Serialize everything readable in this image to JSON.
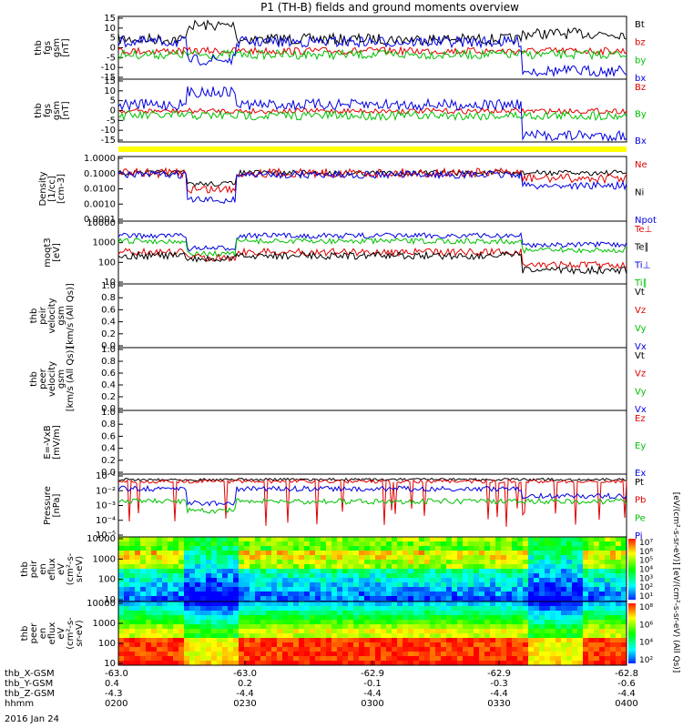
{
  "title": "P1 (TH-B) fields and ground moments overview",
  "date_label": "2016 Jan 24",
  "colors": {
    "black": "#000000",
    "red": "#e00000",
    "green": "#00c000",
    "blue": "#0000e0",
    "yellow": "#ffff00"
  },
  "chart_data": [
    {
      "type": "line",
      "ylabel_lines": [
        "thb",
        "fgs",
        "gsm",
        "[nT]"
      ],
      "ylim": [
        -18,
        16
      ],
      "yticks": [
        "15",
        "10",
        "5",
        "0",
        "-5",
        "-10",
        "-15"
      ],
      "legend": [
        {
          "name": "Bt",
          "color": "black"
        },
        {
          "name": "bz",
          "color": "red"
        },
        {
          "name": "by",
          "color": "green"
        },
        {
          "name": "bx",
          "color": "blue"
        }
      ]
    },
    {
      "type": "line",
      "ylabel_lines": [
        "thb",
        "fgs",
        "gsm",
        "[nT]"
      ],
      "ylim": [
        -18,
        16
      ],
      "yticks": [
        "15",
        "10",
        "5",
        "0",
        "-5",
        "-10",
        "-15"
      ],
      "legend": [
        {
          "name": "Bz",
          "color": "red"
        },
        {
          "name": "By",
          "color": "green"
        },
        {
          "name": "Bx",
          "color": "blue"
        }
      ]
    },
    {
      "type": "line",
      "ylabel_lines": [
        "Density",
        "[1/cc]",
        "[cm-3]"
      ],
      "scale": "log",
      "yticks": [
        "1.0000",
        "0.1000",
        "0.0100",
        "0.0010",
        "0.0001"
      ],
      "legend": [
        {
          "name": "Ne",
          "color": "red"
        },
        {
          "name": "Ni",
          "color": "black"
        },
        {
          "name": "Npot",
          "color": "blue"
        }
      ]
    },
    {
      "type": "line",
      "ylabel_lines": [
        "moqt3",
        "[eV]"
      ],
      "scale": "log",
      "yticks": [
        "10000",
        "1000",
        "100",
        "10"
      ],
      "legend": [
        {
          "name": "Te⊥",
          "color": "red"
        },
        {
          "name": "Te∥",
          "color": "black"
        },
        {
          "name": "Ti⊥",
          "color": "blue"
        },
        {
          "name": "Ti∥",
          "color": "green"
        }
      ]
    },
    {
      "type": "line",
      "ylabel_lines": [
        "thb",
        "peir",
        "velocity",
        "gsm",
        "[km/s (All Qs)]"
      ],
      "ylim": [
        0,
        1
      ],
      "yticks": [
        "1.0",
        "0.8",
        "0.6",
        "0.4",
        "0.2",
        "0.0"
      ],
      "legend": [
        {
          "name": "Vt",
          "color": "black"
        },
        {
          "name": "Vz",
          "color": "red"
        },
        {
          "name": "Vy",
          "color": "green"
        },
        {
          "name": "Vx",
          "color": "blue"
        }
      ]
    },
    {
      "type": "line",
      "ylabel_lines": [
        "thb",
        "peer",
        "velocity",
        "gsm",
        "[km/s (All Qs)]"
      ],
      "ylim": [
        0,
        1
      ],
      "yticks": [
        "1.0",
        "0.8",
        "0.6",
        "0.4",
        "0.2",
        "0.0"
      ],
      "legend": [
        {
          "name": "Vt",
          "color": "black"
        },
        {
          "name": "Vz",
          "color": "red"
        },
        {
          "name": "Vy",
          "color": "green"
        },
        {
          "name": "Vx",
          "color": "blue"
        }
      ]
    },
    {
      "type": "line",
      "ylabel_lines": [
        "E=-VxB",
        "[mV/m]"
      ],
      "ylim": [
        0,
        1
      ],
      "yticks": [
        "1.0",
        "0.8",
        "0.6",
        "0.4",
        "0.2",
        "0.0"
      ],
      "legend": [
        {
          "name": "Ez",
          "color": "red"
        },
        {
          "name": "Ey",
          "color": "green"
        },
        {
          "name": "Ex",
          "color": "blue"
        }
      ]
    },
    {
      "type": "line",
      "ylabel_lines": [
        "Pressure",
        "[nPa]"
      ],
      "scale": "log",
      "yticks": [
        "10⁻¹",
        "10⁻²",
        "10⁻³",
        "10⁻⁴",
        "10⁻⁵"
      ],
      "legend": [
        {
          "name": "Pt",
          "color": "black"
        },
        {
          "name": "Pb",
          "color": "red"
        },
        {
          "name": "Pe",
          "color": "green"
        },
        {
          "name": "Pi",
          "color": "blue"
        }
      ]
    },
    {
      "type": "heatmap",
      "ylabel_lines": [
        "thb",
        "peir",
        "en",
        "eflux",
        "eV",
        "(cm²-s-",
        "sr-eV)"
      ],
      "scale": "log",
      "yticks": [
        "10000",
        "1000",
        "100",
        "10"
      ],
      "colorbar_ticks": [
        "10⁷",
        "10⁶",
        "10⁵",
        "10⁴",
        "10³",
        "10²",
        "10¹"
      ]
    },
    {
      "type": "heatmap",
      "ylabel_lines": [
        "thb",
        "peer",
        "en",
        "eflux",
        "eV",
        "(cm²-s-",
        "sr-eV)"
      ],
      "scale": "log",
      "yticks": [
        "10000",
        "1000",
        "100",
        "10"
      ],
      "colorbar_ticks": [
        "10⁸",
        "10⁶",
        "10⁴",
        "10²"
      ]
    }
  ],
  "colorbar_label": "[eV/(cm²-s-sr-eV)] [eV/(cm²-s-sr-eV) (All Qs)]",
  "x_axis": {
    "rows": [
      {
        "label": "thb_X-GSM",
        "values": [
          "-63.0",
          "-63.0",
          "-62.9",
          "-62.9",
          "-62.8"
        ]
      },
      {
        "label": "thb_Y-GSM",
        "values": [
          "0.4",
          "0.2",
          "-0.1",
          "-0.3",
          "-0.6"
        ]
      },
      {
        "label": "thb_Z-GSM",
        "values": [
          "-4.3",
          "-4.4",
          "-4.4",
          "-4.4",
          "-4.4"
        ]
      },
      {
        "label": "hhmm",
        "values": [
          "0200",
          "0230",
          "0300",
          "0330",
          "0400"
        ]
      }
    ]
  }
}
